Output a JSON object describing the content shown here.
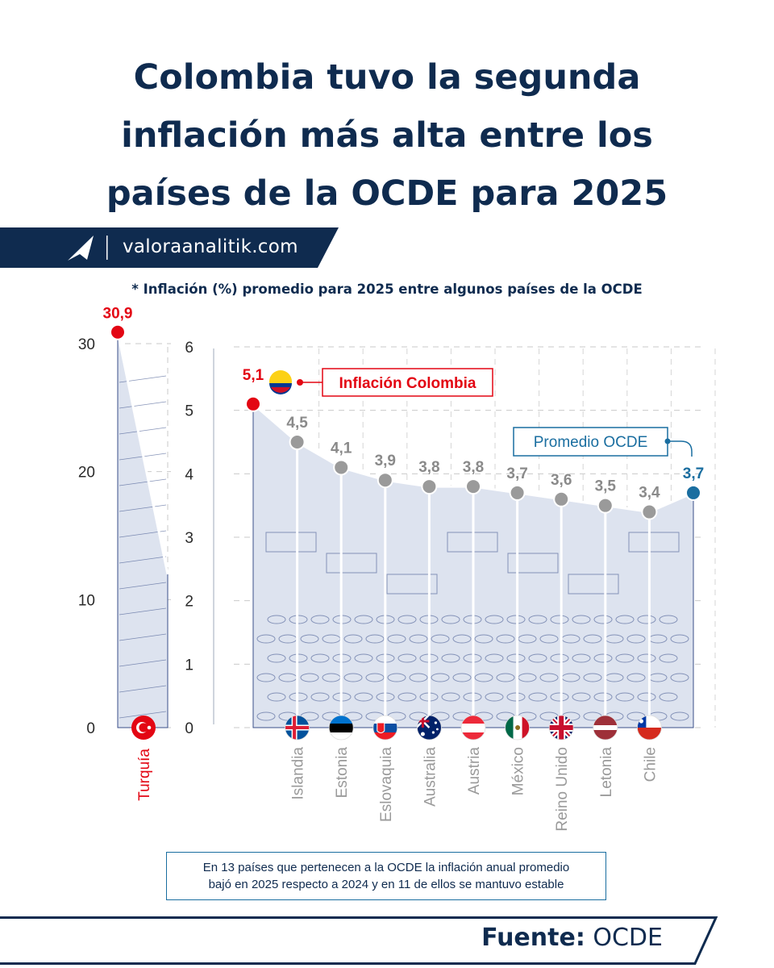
{
  "title_lines": [
    "Colombia tuvo la segunda",
    "inflación más alta entre los",
    "países de la OCDE para 2025"
  ],
  "brand": {
    "site": "valoraanalitik.com",
    "logo_icon": "valora-paper-plane-icon"
  },
  "subtitle": "*  Inflación (%) promedio para 2025 entre algunos países de la OCDE",
  "note_lines": [
    "En 13 países que pertenecen a la OCDE la inflación anual promedio",
    "bajó en 2025 respecto a 2024 y en 11 de ellos se mantuvo estable"
  ],
  "source": {
    "label": "Fuente:",
    "value": "OCDE"
  },
  "colors": {
    "navy": "#0f2b4f",
    "red": "#e30613",
    "gray": "#9a9a9a",
    "blue": "#1a6ea0",
    "sketch": "#3a4f8a"
  },
  "chart_data": [
    {
      "type": "line",
      "panel": "left",
      "yticks": [
        0,
        10,
        20,
        30
      ],
      "ylim": [
        0,
        30
      ],
      "categories": [
        "Turquía"
      ],
      "values": [
        30.9
      ],
      "labels": [
        "30,9"
      ],
      "flags": [
        "turkey-flag-icon"
      ]
    },
    {
      "type": "line",
      "panel": "main",
      "yticks": [
        0,
        1,
        2,
        3,
        4,
        5,
        6
      ],
      "ylim": [
        0,
        6
      ],
      "grid": true,
      "series": [
        {
          "categories": [
            "Colombia",
            "Islandia",
            "Estonia",
            "Eslovaquia",
            "Australia",
            "Austria",
            "México",
            "Reino Unido",
            "Letonia",
            "Chile",
            "Promedio OCDE"
          ],
          "values": [
            5.1,
            4.5,
            4.1,
            3.9,
            3.8,
            3.8,
            3.7,
            3.6,
            3.5,
            3.4,
            3.7
          ],
          "labels": [
            "5,1",
            "4,5",
            "4,1",
            "3,9",
            "3,8",
            "3,8",
            "3,7",
            "3,6",
            "3,5",
            "3,4",
            "3,7"
          ]
        }
      ],
      "axis_categories": [
        "Islandia",
        "Estonia",
        "Eslovaquia",
        "Australia",
        "Austria",
        "México",
        "Reino Unido",
        "Letonia",
        "Chile"
      ],
      "flags": [
        "iceland-flag-icon",
        "estonia-flag-icon",
        "slovakia-flag-icon",
        "australia-flag-icon",
        "austria-flag-icon",
        "mexico-flag-icon",
        "uk-flag-icon",
        "latvia-flag-icon",
        "chile-flag-icon"
      ],
      "annotations": {
        "colombia": "Inflación Colombia",
        "average": "Promedio OCDE"
      }
    }
  ]
}
